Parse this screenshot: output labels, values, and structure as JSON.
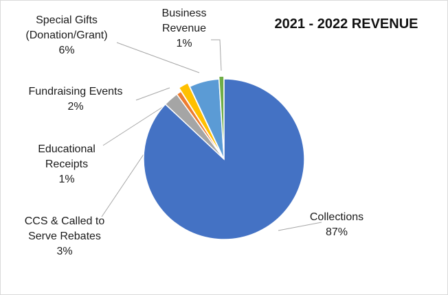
{
  "chart_data": {
    "type": "pie",
    "title": "2021 - 2022 REVENUE",
    "slices": [
      {
        "label_lines": [
          "Collections"
        ],
        "pct_label": "87%",
        "value": 87,
        "color": "#4472C4"
      },
      {
        "label_lines": [
          "CCS & Called to",
          "Serve Rebates"
        ],
        "pct_label": "3%",
        "value": 3,
        "color": "#A5A5A5"
      },
      {
        "label_lines": [
          "Educational",
          "Receipts"
        ],
        "pct_label": "1%",
        "value": 1,
        "color": "#ED7D31"
      },
      {
        "label_lines": [
          "Fundraising Events"
        ],
        "pct_label": "2%",
        "value": 2,
        "color": "#FFC000"
      },
      {
        "label_lines": [
          "Special Gifts",
          "(Donation/Grant)"
        ],
        "pct_label": "6%",
        "value": 6,
        "color": "#5B9BD5"
      },
      {
        "label_lines": [
          "Business",
          "Revenue"
        ],
        "pct_label": "1%",
        "value": 1,
        "color": "#70AD47"
      }
    ]
  }
}
